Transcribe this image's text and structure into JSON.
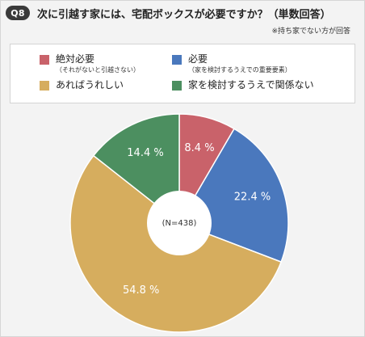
{
  "header": {
    "badge": "Q8",
    "question": "次に引越す家には、宅配ボックスが必要ですか？（単数回答）"
  },
  "note": "※持ち家でない方が回答",
  "chart_data": {
    "type": "pie",
    "center_label": "(N=438)",
    "start_angle": 0,
    "direction": "clockwise",
    "slices": [
      {
        "label": "絶対必要",
        "sublabel": "（それがないと引越さない）",
        "value": 8.4,
        "value_label": "8.4 %",
        "color": "#c9626a"
      },
      {
        "label": "必要",
        "sublabel": "（家を検討するうえでの重要要素）",
        "value": 22.4,
        "value_label": "22.4 %",
        "color": "#4a78bd"
      },
      {
        "label": "あればうれしい",
        "sublabel": "",
        "value": 54.8,
        "value_label": "54.8 %",
        "color": "#d6ad5e"
      },
      {
        "label": "家を検討するうえで関係ない",
        "sublabel": "",
        "value": 14.4,
        "value_label": "14.4 %",
        "color": "#4c8f60"
      }
    ]
  }
}
